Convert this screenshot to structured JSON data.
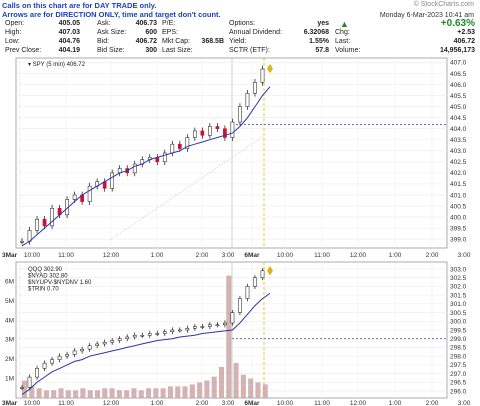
{
  "notice": [
    "Calls on this chart are for DAY TRADE only.",
    "Arrows are for DIRECTION ONLY, time and target don't count."
  ],
  "watermark": "© StockCharts.com",
  "datetime": "Monday  6-Mar-2023  10:41 am",
  "quote": {
    "col1": [
      {
        "label": "Open:",
        "value": "405.05"
      },
      {
        "label": "High:",
        "value": "407.03"
      },
      {
        "label": "Low:",
        "value": "404.76"
      },
      {
        "label": "Prev Close:",
        "value": "404.19"
      }
    ],
    "col2": [
      {
        "label": "Ask:",
        "value": "406.73"
      },
      {
        "label": "Ask Size:",
        "value": "600"
      },
      {
        "label": "Bid:",
        "value": "406.72"
      },
      {
        "label": "Bid Size:",
        "value": "300"
      }
    ],
    "col3": [
      {
        "label": "P/E:",
        "value": ""
      },
      {
        "label": "EPS:",
        "value": ""
      },
      {
        "label": "Mkt Cap:",
        "value": "368.5B"
      },
      {
        "label": "Last Size:",
        "value": ""
      }
    ],
    "col4": [
      {
        "label": "Options:",
        "value": "yes"
      },
      {
        "label": "Annual Dividend:",
        "value": "6.32068"
      },
      {
        "label": "Yield:",
        "value": "1.55%"
      },
      {
        "label": "SCTR (ETF):",
        "value": "57.8"
      }
    ],
    "col5": [
      {
        "label": "",
        "value": "+0.63%"
      },
      {
        "label": "Chg:",
        "value": "+2.53"
      },
      {
        "label": "Last:",
        "value": "406.72"
      },
      {
        "label": "Volume:",
        "value": "14,956,173"
      }
    ]
  },
  "colors": {
    "up": "#111111",
    "down": "#cc1133",
    "ma": "#2a35a8",
    "line": "#3040b0",
    "guide": "#e6b800",
    "volume": "#c9a0a0",
    "accent": "#1c8a2a"
  },
  "chart_data": [
    {
      "type": "line",
      "title": "SPY (5 min) 406.72",
      "ylim": [
        398.6,
        407.2
      ],
      "y_ticks": [
        "407.0",
        "406.5",
        "406.0",
        "405.5",
        "405.0",
        "404.5",
        "404.0",
        "403.5",
        "403.0",
        "402.5",
        "402.0",
        "401.5",
        "401.0",
        "400.5",
        "400.0",
        "399.5",
        "399.0"
      ],
      "x_ticks": [
        "3Mar",
        "10:00",
        "11:00",
        "12:00",
        "1:00",
        "2:00",
        "3:00",
        "6Mar",
        "10:00",
        "11:00",
        "12:00",
        "1:00",
        "2:00",
        "3:00"
      ],
      "series": [
        {
          "name": "",
          "values": [
            398.9,
            399.4,
            399.9,
            399.6,
            400.4,
            400.1,
            400.8,
            401.0,
            400.7,
            401.4,
            401.6,
            401.3,
            402.0,
            402.2,
            402.0,
            402.4,
            402.6,
            402.7,
            402.5,
            402.9,
            403.3,
            403.1,
            403.6,
            403.9,
            403.7,
            404.1,
            404.0,
            403.6,
            404.3,
            405.0,
            405.6,
            406.1,
            406.7,
            406.72
          ]
        },
        {
          "name": "",
          "values": [
            398.7,
            398.9,
            399.2,
            399.5,
            399.8,
            400.1,
            400.4,
            400.7,
            401.0,
            401.2,
            401.4,
            401.6,
            401.8,
            402.0,
            402.1,
            402.3,
            402.4,
            402.6,
            402.7,
            402.8,
            402.9,
            403.0,
            403.2,
            403.3,
            403.4,
            403.5,
            403.6,
            403.7,
            403.8,
            404.1,
            404.5,
            405.0,
            405.5,
            405.9
          ]
        }
      ],
      "reference_level": 404.19,
      "current_level": 406.72
    },
    {
      "type": "line",
      "legend": [
        "QQQ 302.90",
        "$NYAD 302.80",
        "$NYUPV-$NYDNV 1.60",
        "$TRIN 0.70"
      ],
      "ylim": [
        295.6,
        303.4
      ],
      "y_ticks": [
        "303.0",
        "302.5",
        "302.0",
        "301.5",
        "301.0",
        "300.5",
        "300.0",
        "299.5",
        "299.0",
        "298.5",
        "298.0",
        "297.5",
        "297.0",
        "296.5",
        "296.0",
        "295.5"
      ],
      "volume_ticks": [
        "6M",
        "5M",
        "4M",
        "3M",
        "2M",
        "1M"
      ],
      "series": [
        {
          "name": "QQQ",
          "values": [
            296.2,
            296.8,
            297.3,
            297.6,
            297.8,
            298.0,
            298.1,
            298.3,
            298.4,
            298.6,
            298.7,
            298.8,
            298.9,
            299.0,
            299.1,
            299.2,
            299.2,
            299.3,
            299.3,
            299.4,
            299.5,
            299.5,
            299.6,
            299.7,
            299.7,
            299.8,
            299.8,
            299.9,
            300.5,
            301.3,
            302.0,
            302.5,
            302.9,
            302.9
          ]
        },
        {
          "name": "MA",
          "values": [
            295.8,
            296.1,
            296.5,
            296.8,
            297.1,
            297.3,
            297.5,
            297.7,
            297.8,
            298.0,
            298.1,
            298.2,
            298.3,
            298.4,
            298.5,
            298.6,
            298.7,
            298.8,
            298.9,
            298.95,
            299.0,
            299.1,
            299.15,
            299.2,
            299.3,
            299.35,
            299.4,
            299.45,
            299.5,
            299.9,
            300.4,
            300.9,
            301.3,
            301.6
          ]
        }
      ],
      "volume": [
        0.9,
        0.6,
        0.5,
        0.4,
        0.4,
        0.5,
        0.4,
        0.4,
        0.5,
        0.4,
        0.4,
        0.5,
        0.5,
        0.4,
        0.4,
        0.5,
        0.4,
        0.5,
        0.5,
        0.5,
        0.6,
        0.6,
        0.6,
        0.7,
        0.8,
        0.9,
        1.1,
        1.6,
        6.3,
        1.8,
        1.2,
        1.0,
        0.8,
        0.7
      ],
      "reference_level": 299.0
    }
  ]
}
